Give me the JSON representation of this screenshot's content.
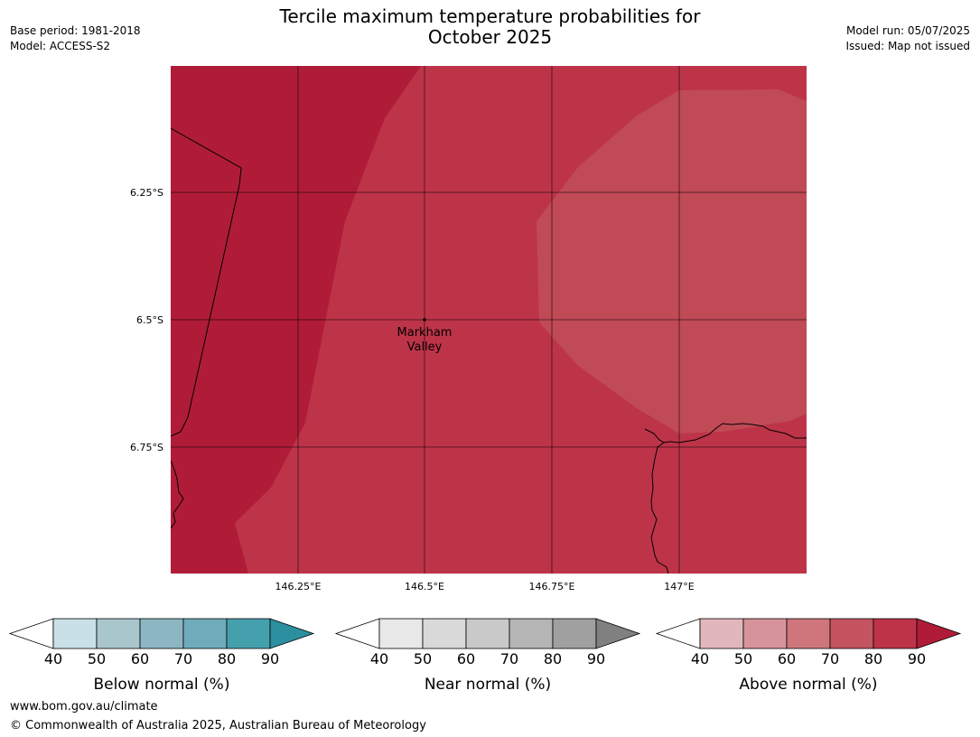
{
  "header": {
    "title_line1": "Tercile maximum temperature probabilities for",
    "title_line2": "October 2025",
    "base_period": "Base period: 1981-2018",
    "model": "Model: ACCESS-S2",
    "model_run": "Model run: 05/07/2025",
    "issued": "Issued: Map not issued"
  },
  "map": {
    "lat_labels": [
      "6.25°S",
      "6.5°S",
      "6.75°S"
    ],
    "lon_labels": [
      "146.25°E",
      "146.5°E",
      "146.75°E",
      "147°E"
    ],
    "place": {
      "name_line1": "Markham",
      "name_line2": "Valley"
    },
    "probability_zones": [
      {
        "category": "Above normal",
        "range": "80-90",
        "color": "#b01c38"
      },
      {
        "category": "Above normal",
        "range": "70-80",
        "color": "#bd3449"
      },
      {
        "category": "Above normal",
        "range": "60-70",
        "color": "#c04a56"
      }
    ]
  },
  "colorbars": [
    {
      "title": "Below normal (%)",
      "ticks": [
        "40",
        "50",
        "60",
        "70",
        "80",
        "90"
      ],
      "colors": [
        "#c9e1e6",
        "#a9c6cc",
        "#8bb6c2",
        "#6eacbb",
        "#45a0ae"
      ],
      "over_color": "#2c8f9f"
    },
    {
      "title": "Near normal (%)",
      "ticks": [
        "40",
        "50",
        "60",
        "70",
        "80",
        "90"
      ],
      "colors": [
        "#e8e8e8",
        "#d9d9d9",
        "#c9c9c9",
        "#b5b5b5",
        "#a0a0a0"
      ],
      "over_color": "#808080"
    },
    {
      "title": "Above normal (%)",
      "ticks": [
        "40",
        "50",
        "60",
        "70",
        "80",
        "90"
      ],
      "colors": [
        "#e2b7bb",
        "#d6949a",
        "#ce767c",
        "#c4545f",
        "#bd3449"
      ],
      "over_color": "#b01c38"
    }
  ],
  "footer": {
    "url": "www.bom.gov.au/climate",
    "copyright": "© Commonwealth of Australia 2025, Australian Bureau of Meteorology"
  }
}
